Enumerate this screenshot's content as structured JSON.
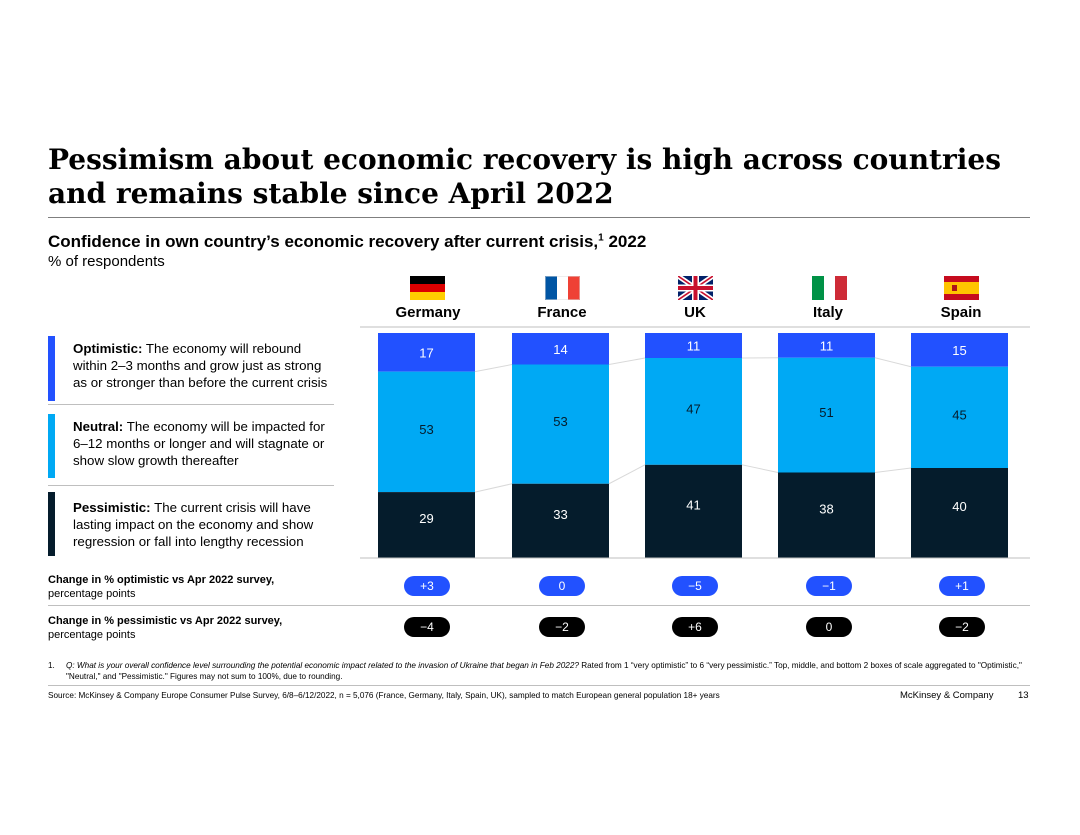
{
  "title": "Pessimism about economic recovery is high across countries and remains stable since April 2022",
  "subtitle": "Confidence in own country’s economic recovery after current crisis,",
  "subtitle_sup": "1",
  "subtitle_year": "2022",
  "unit": "% of respondents",
  "legend": [
    {
      "term": "Optimistic:",
      "text": "The economy will rebound within 2–3 months and grow just as strong as or stronger than before the current crisis",
      "color": "#2251ff"
    },
    {
      "term": "Neutral:",
      "text": "The economy will be impacted for 6–12 months or longer and will stagnate or show slow growth thereafter",
      "color": "#00a9f4"
    },
    {
      "term": "Pessimistic:",
      "text": "The current crisis will have lasting impact on the economy and show regression or fall into lengthy recession",
      "color": "#051c2c"
    }
  ],
  "chart_data": {
    "type": "bar",
    "stacked": true,
    "normalized": true,
    "categories": [
      "Germany",
      "France",
      "UK",
      "Italy",
      "Spain"
    ],
    "series": [
      {
        "name": "Optimistic",
        "values": [
          17,
          14,
          11,
          11,
          15
        ],
        "color": "#2251ff"
      },
      {
        "name": "Neutral",
        "values": [
          53,
          53,
          47,
          51,
          45
        ],
        "color": "#00a9f4"
      },
      {
        "name": "Pessimistic",
        "values": [
          29,
          33,
          41,
          38,
          40
        ],
        "color": "#051c2c"
      }
    ],
    "ylabel": "% of respondents"
  },
  "changes": {
    "optimistic_label": "Change in % optimistic vs Apr 2022 survey,",
    "optimistic_sub": "percentage points",
    "optimistic_values": [
      "+3",
      "0",
      "−5",
      "−1",
      "+1"
    ],
    "pessimistic_label": "Change in % pessimistic vs Apr 2022 survey,",
    "pessimistic_sub": "percentage points",
    "pessimistic_values": [
      "−4",
      "−2",
      "+6",
      "0",
      "−2"
    ]
  },
  "footnote": {
    "number": "1.",
    "question": "Q: What is your overall confidence level surrounding the potential economic impact related to the invasion of Ukraine that began in Feb 2022?",
    "rest": "Rated from 1 “very optimistic” to 6 “very pessimistic.” Top, middle, and bottom 2 boxes of scale aggregated to \"Optimistic,\" \"Neutral,\" and \"Pessimistic.\" Figures may not sum to 100%, due to rounding."
  },
  "source": "Source: McKinsey & Company Europe Consumer Pulse Survey, 6/8–6/12/2022, n = 5,076 (France, Germany, Italy, Spain, UK), sampled to match European general population 18+ years",
  "brand": "McKinsey & Company",
  "page_number": "13",
  "flags": [
    "germany-flag-icon",
    "france-flag-icon",
    "uk-flag-icon",
    "italy-flag-icon",
    "spain-flag-icon"
  ]
}
